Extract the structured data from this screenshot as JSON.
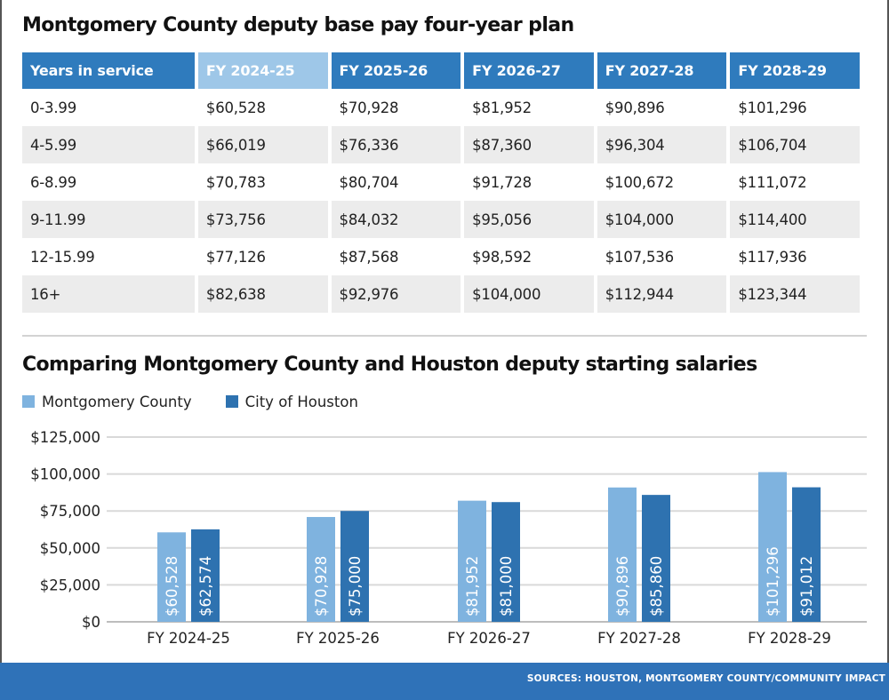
{
  "table": {
    "title": "Montgomery County deputy base pay four-year plan",
    "headers": [
      "Years in service",
      "FY 2024-25",
      "FY 2025-26",
      "FY 2026-27",
      "FY 2027-28",
      "FY 2028-29"
    ],
    "rows": [
      [
        "0-3.99",
        "$60,528",
        "$70,928",
        "$81,952",
        "$90,896",
        "$101,296"
      ],
      [
        "4-5.99",
        "$66,019",
        "$76,336",
        "$87,360",
        "$96,304",
        "$106,704"
      ],
      [
        "6-8.99",
        "$70,783",
        "$80,704",
        "$91,728",
        "$100,672",
        "$111,072"
      ],
      [
        "9-11.99",
        "$73,756",
        "$84,032",
        "$95,056",
        "$104,000",
        "$114,400"
      ],
      [
        "12-15.99",
        "$77,126",
        "$87,568",
        "$98,592",
        "$107,536",
        "$117,936"
      ],
      [
        "16+",
        "$82,638",
        "$92,976",
        "$104,000",
        "$112,944",
        "$123,344"
      ]
    ],
    "highlight_color": "#9ec7e8",
    "header_color": "#2f7bbd"
  },
  "chart_data": {
    "type": "bar",
    "title": "Comparing Montgomery County and Houston deputy starting salaries",
    "categories": [
      "FY 2024-25",
      "FY 2025-26",
      "FY 2026-27",
      "FY 2027-28",
      "FY 2028-29"
    ],
    "series": [
      {
        "name": "Montgomery County",
        "color": "#7fb3df",
        "values": [
          60528,
          70928,
          81952,
          90896,
          101296
        ]
      },
      {
        "name": "City of Houston",
        "color": "#2e72b0",
        "values": [
          62574,
          75000,
          81000,
          85860,
          91012
        ]
      }
    ],
    "data_labels": [
      [
        "$60,528",
        "$70,928",
        "$81,952",
        "$90,896",
        "$101,296"
      ],
      [
        "$62,574",
        "$75,000",
        "$81,000",
        "$85,860",
        "$91,012"
      ]
    ],
    "yticks": [
      0,
      25000,
      50000,
      75000,
      100000,
      125000
    ],
    "ytick_labels": [
      "$0",
      "$25,000",
      "$50,000",
      "$75,000",
      "$100,000",
      "$125,000"
    ],
    "ylim": [
      0,
      125000
    ],
    "xlabel": "",
    "ylabel": "",
    "grid": true,
    "legend_position": "top-left"
  },
  "footer": {
    "source": "SOURCES: HOUSTON, MONTGOMERY COUNTY/COMMUNITY IMPACT"
  }
}
